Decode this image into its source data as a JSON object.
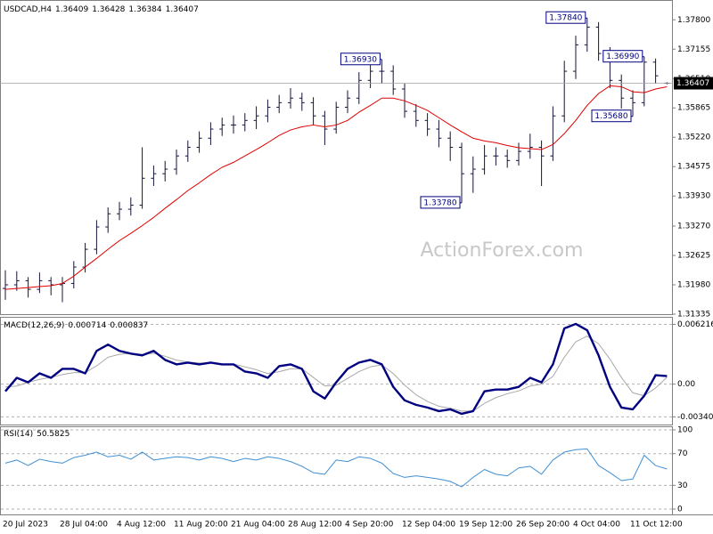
{
  "chart_data": [
    {
      "type": "ohlc",
      "title": "USDCAD,H4",
      "watermark": "ActionForex.com",
      "color": "#14143c",
      "grid": false,
      "categories": [
        "20 Jul 2023",
        null,
        null,
        null,
        null,
        "28 Jul 04:00",
        null,
        null,
        null,
        null,
        "4 Aug 12:00",
        null,
        null,
        null,
        null,
        "11 Aug 20:00",
        null,
        null,
        null,
        null,
        "21 Aug 04:00",
        null,
        null,
        null,
        null,
        "28 Aug 12:00",
        null,
        null,
        null,
        null,
        "4 Sep 20:00",
        null,
        null,
        null,
        null,
        "12 Sep 04:00",
        null,
        null,
        null,
        null,
        "19 Sep 12:00",
        null,
        null,
        null,
        null,
        "26 Sep 20:00",
        null,
        null,
        null,
        null,
        "4 Oct 04:00",
        null,
        null,
        null,
        null,
        "11 Oct 12:00",
        null,
        null,
        null
      ],
      "open": [
        1.319,
        1.3198,
        1.3207,
        1.3188,
        1.3207,
        1.3198,
        1.3201,
        1.3237,
        1.3276,
        1.3325,
        1.3354,
        1.3364,
        1.3373,
        1.3432,
        1.3442,
        1.3452,
        1.3481,
        1.35,
        1.352,
        1.354,
        1.3549,
        1.3549,
        1.3559,
        1.3569,
        1.3588,
        1.3598,
        1.3608,
        1.3598,
        1.3569,
        1.354,
        1.3588,
        1.3608,
        1.3647,
        1.3667,
        1.3667,
        1.3628,
        1.3579,
        1.3559,
        1.354,
        1.352,
        1.35,
        1.3442,
        1.3452,
        1.3481,
        1.3481,
        1.3471,
        1.3491,
        1.35,
        1.3481,
        1.3569,
        1.3667,
        1.3725,
        1.3764,
        1.3706,
        1.3647,
        1.3608,
        1.3598,
        1.3687,
        1.36409
      ],
      "high": [
        1.323,
        1.3228,
        1.3215,
        1.3225,
        1.3215,
        1.3215,
        1.325,
        1.329,
        1.334,
        1.3368,
        1.338,
        1.339,
        1.35,
        1.346,
        1.347,
        1.3495,
        1.3515,
        1.3535,
        1.3555,
        1.3565,
        1.357,
        1.3575,
        1.359,
        1.3605,
        1.3615,
        1.363,
        1.362,
        1.361,
        1.358,
        1.36,
        1.3625,
        1.3665,
        1.3685,
        1.3693,
        1.368,
        1.364,
        1.3595,
        1.3575,
        1.356,
        1.3535,
        1.351,
        1.348,
        1.3505,
        1.35,
        1.3495,
        1.351,
        1.353,
        1.3515,
        1.359,
        1.369,
        1.3745,
        1.3784,
        1.3775,
        1.372,
        1.366,
        1.3625,
        1.3699,
        1.3695,
        1.36428
      ],
      "low": [
        1.3165,
        1.3185,
        1.317,
        1.318,
        1.3175,
        1.316,
        1.319,
        1.3225,
        1.3265,
        1.3312,
        1.334,
        1.335,
        1.3365,
        1.3415,
        1.3425,
        1.344,
        1.3468,
        1.3488,
        1.3505,
        1.3525,
        1.353,
        1.3535,
        1.354,
        1.3555,
        1.3575,
        1.3585,
        1.358,
        1.355,
        1.3505,
        1.353,
        1.3575,
        1.3595,
        1.363,
        1.364,
        1.3615,
        1.3565,
        1.3545,
        1.3525,
        1.35,
        1.347,
        1.3378,
        1.34,
        1.344,
        1.346,
        1.3455,
        1.346,
        1.3475,
        1.3415,
        1.347,
        1.3555,
        1.365,
        1.371,
        1.369,
        1.363,
        1.3585,
        1.3568,
        1.359,
        1.364,
        1.36384
      ],
      "close": [
        1.3198,
        1.3207,
        1.3188,
        1.3207,
        1.3198,
        1.3201,
        1.3237,
        1.3276,
        1.3325,
        1.3354,
        1.3364,
        1.3373,
        1.3432,
        1.3442,
        1.3452,
        1.3481,
        1.35,
        1.352,
        1.354,
        1.3549,
        1.3549,
        1.3559,
        1.3569,
        1.3588,
        1.3598,
        1.3608,
        1.3598,
        1.3569,
        1.354,
        1.3588,
        1.3608,
        1.3647,
        1.3667,
        1.3667,
        1.3628,
        1.3579,
        1.3559,
        1.354,
        1.352,
        1.35,
        1.3442,
        1.3452,
        1.3481,
        1.3481,
        1.3471,
        1.3491,
        1.35,
        1.3481,
        1.3569,
        1.3667,
        1.3725,
        1.3764,
        1.3706,
        1.3647,
        1.3608,
        1.3598,
        1.3687,
        1.3657,
        1.36407
      ],
      "ma": {
        "color": "#e00000",
        "values": [
          1.3188,
          1.319,
          1.3192,
          1.3194,
          1.3196,
          1.3201,
          1.3217,
          1.3237,
          1.3256,
          1.3276,
          1.3295,
          1.3311,
          1.3328,
          1.3346,
          1.3366,
          1.3385,
          1.3405,
          1.3422,
          1.344,
          1.3456,
          1.3467,
          1.3481,
          1.3495,
          1.351,
          1.3526,
          1.3538,
          1.3545,
          1.3549,
          1.3545,
          1.3549,
          1.3559,
          1.3577,
          1.3592,
          1.3608,
          1.3608,
          1.3602,
          1.3592,
          1.3581,
          1.3565,
          1.3549,
          1.3534,
          1.352,
          1.3514,
          1.351,
          1.3504,
          1.3499,
          1.3497,
          1.3495,
          1.3506,
          1.353,
          1.3559,
          1.3592,
          1.3618,
          1.3635,
          1.3633,
          1.3622,
          1.362,
          1.3628,
          1.3633
        ]
      },
      "annotations": [
        {
          "value": 1.3693,
          "label": "1.36930"
        },
        {
          "value": 1.3378,
          "label": "1.33780"
        },
        {
          "value": 1.3784,
          "label": "1.37840"
        },
        {
          "value": 1.3568,
          "label": "1.35680"
        },
        {
          "value": 1.3699,
          "label": "1.36990"
        }
      ],
      "ylim": [
        1.31335,
        1.38235
      ],
      "yticks": [
        {
          "value": 1.378,
          "label": "1.37800"
        },
        1.37155,
        {
          "value": 1.3651,
          "label": "1.36510"
        },
        1.35865,
        {
          "value": 1.3522,
          "label": "1.35220"
        },
        1.34575,
        {
          "value": 1.3393,
          "label": "1.33930"
        },
        {
          "value": 1.3327,
          "label": "1.33270"
        },
        1.32625,
        {
          "value": 1.3198,
          "label": "1.31980"
        },
        1.31335
      ]
    },
    {
      "type": "macd",
      "title": "MACD(12,26,9)",
      "grid": true,
      "series": [
        {
          "color": "#000080",
          "values": [
            -0.000748,
            0.000655,
            0.000187,
            0.001122,
            0.000655,
            0.00159,
            0.00159,
            0.001122,
            0.00346,
            0.004114,
            0.00346,
            0.003179,
            0.002992,
            0.00346,
            0.002525,
            0.002057,
            0.002244,
            0.002057,
            0.002244,
            0.002057,
            0.002057,
            0.001309,
            0.001122,
            0.000655,
            0.00187,
            0.002057,
            0.00159,
            -0.000748,
            -0.001496,
            0.000187,
            0.00159,
            0.002244,
            0.002525,
            0.002057,
            -0.000281,
            -0.001683,
            -0.002151,
            -0.002431,
            -0.002805,
            -0.002618,
            -0.003086,
            -0.002805,
            -0.000748,
            -0.000561,
            -0.000561,
            -0.000281,
            0.000655,
            0.000187,
            0.002057,
            0.005797,
            0.006265,
            0.00561,
            0.002992,
            -0.000281,
            -0.002431,
            -0.002618,
            -0.001216,
            0.000935,
            0.000837
          ]
        },
        {
          "color": "#a8a8a8",
          "values": [
            -0.0003,
            -0.0002,
            0.0002,
            0.0005,
            0.0007,
            0.001,
            0.0012,
            0.0012,
            0.0019,
            0.0028,
            0.0031,
            0.0032,
            0.0031,
            0.0032,
            0.0029,
            0.0025,
            0.0023,
            0.0022,
            0.0022,
            0.0021,
            0.0021,
            0.0018,
            0.0015,
            0.0011,
            0.0013,
            0.0016,
            0.0016,
            0.0007,
            -0.0002,
            -0.0001,
            0.0006,
            0.0013,
            0.0018,
            0.002,
            0.0011,
            -0.0001,
            -0.0011,
            -0.0018,
            -0.0023,
            -0.0025,
            -0.0028,
            -0.0028,
            -0.002,
            -0.0014,
            -0.001,
            -0.0007,
            -0.0002,
            0,
            0.0008,
            0.0028,
            0.0044,
            0.005,
            0.0042,
            0.0026,
            0.0007,
            -0.0009,
            -0.0012,
            -0.0004,
            0.000714
          ]
        }
      ],
      "ylim": [
        -0.0042,
        0.007
      ],
      "yticks": [
        0.006216,
        {
          "value": 0,
          "label": "0.00"
        },
        -0.003407
      ]
    },
    {
      "type": "line",
      "title": "RSI(14)",
      "color": "#3f8fd4",
      "grid": true,
      "values": [
        58,
        62,
        55,
        63,
        60,
        58,
        65,
        68,
        72,
        66,
        68,
        63,
        72,
        62,
        64,
        66,
        65,
        62,
        66,
        64,
        60,
        64,
        62,
        66,
        64,
        60,
        54,
        46,
        44,
        62,
        60,
        66,
        64,
        58,
        45,
        40,
        42,
        40,
        38,
        35,
        28,
        40,
        50,
        44,
        42,
        52,
        54,
        44,
        62,
        72,
        75,
        76,
        55,
        46,
        36,
        38,
        68,
        55,
        50.5825
      ],
      "ylim": [
        -6.7,
        104.5
      ],
      "yticks": [
        100,
        70,
        30,
        0
      ]
    }
  ]
}
